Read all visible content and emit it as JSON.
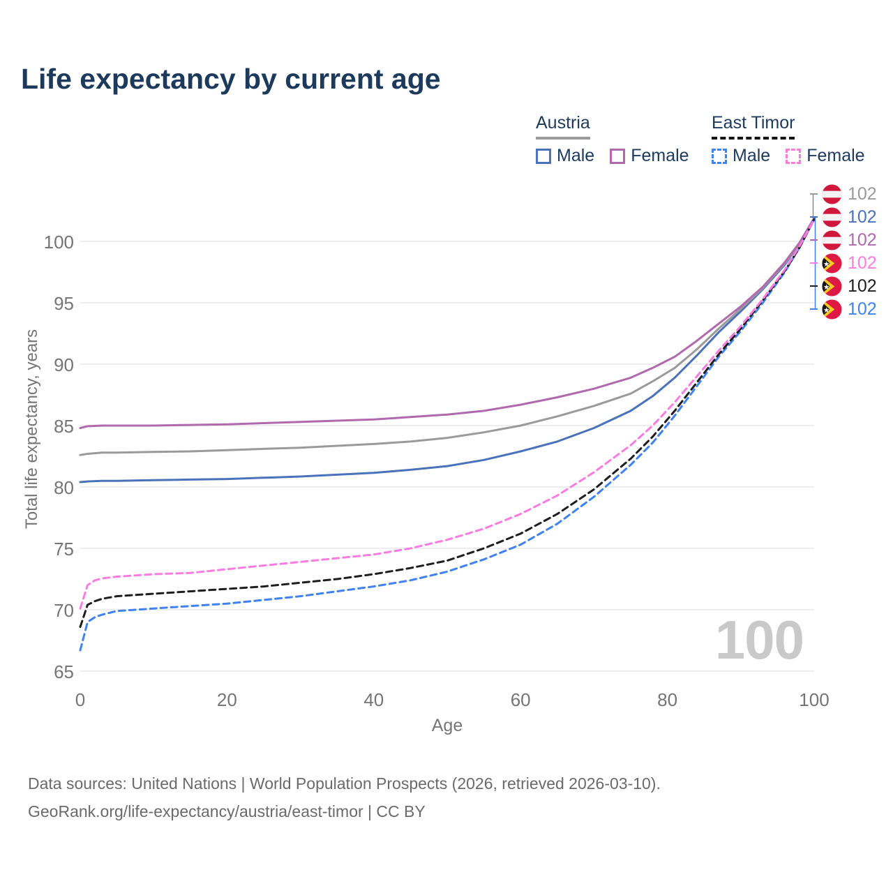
{
  "title": "Life expectancy by current age",
  "legend": {
    "groups": [
      {
        "label": "Austria",
        "line_style": "solid",
        "underline_color": "#9a9a9a",
        "items": [
          {
            "label": "Male",
            "color": "#4a72ba"
          },
          {
            "label": "Female",
            "color": "#b169ae"
          }
        ]
      },
      {
        "label": "East Timor",
        "line_style": "dashed",
        "underline_color": "#151515",
        "items": [
          {
            "label": "Male",
            "color": "#3f82f0"
          },
          {
            "label": "Female",
            "color": "#fb7ce0"
          }
        ]
      }
    ]
  },
  "chart_data": {
    "type": "line",
    "title": "Life expectancy by current age",
    "xlabel": "Age",
    "ylabel": "Total life expectancy, years",
    "xlim": [
      0,
      100
    ],
    "ylim": [
      63.5,
      103.5
    ],
    "xticks": [
      0,
      20,
      40,
      60,
      80,
      100
    ],
    "yticks": [
      65,
      70,
      75,
      80,
      85,
      90,
      95,
      100
    ],
    "grid": "horizontal-only",
    "legend_position": "top-right",
    "series": [
      {
        "id": "austria-male",
        "name": "Austria Male",
        "country": "Austria",
        "sex": "male",
        "color": "#4a72ba",
        "dashed": false,
        "end_label": "102",
        "points": [
          [
            0,
            80.4
          ],
          [
            1,
            80.45
          ],
          [
            3,
            80.5
          ],
          [
            5,
            80.5
          ],
          [
            10,
            80.55
          ],
          [
            15,
            80.6
          ],
          [
            20,
            80.65
          ],
          [
            25,
            80.75
          ],
          [
            30,
            80.85
          ],
          [
            35,
            81.0
          ],
          [
            40,
            81.15
          ],
          [
            45,
            81.4
          ],
          [
            50,
            81.7
          ],
          [
            55,
            82.2
          ],
          [
            60,
            82.9
          ],
          [
            65,
            83.7
          ],
          [
            70,
            84.8
          ],
          [
            75,
            86.2
          ],
          [
            78,
            87.4
          ],
          [
            81,
            88.9
          ],
          [
            84,
            90.7
          ],
          [
            87,
            92.6
          ],
          [
            90,
            94.3
          ],
          [
            93,
            96.1
          ],
          [
            96,
            98.1
          ],
          [
            98,
            99.8
          ],
          [
            100,
            101.9
          ]
        ]
      },
      {
        "id": "austria-all",
        "name": "Austria (both sexes)",
        "country": "Austria",
        "sex": "all",
        "color": "#9a9a9a",
        "dashed": false,
        "end_label": "102",
        "points": [
          [
            0,
            82.6
          ],
          [
            1,
            82.7
          ],
          [
            3,
            82.8
          ],
          [
            5,
            82.8
          ],
          [
            10,
            82.85
          ],
          [
            15,
            82.9
          ],
          [
            20,
            83.0
          ],
          [
            25,
            83.1
          ],
          [
            30,
            83.2
          ],
          [
            35,
            83.35
          ],
          [
            40,
            83.5
          ],
          [
            45,
            83.7
          ],
          [
            50,
            84.0
          ],
          [
            55,
            84.45
          ],
          [
            60,
            85.0
          ],
          [
            65,
            85.75
          ],
          [
            70,
            86.6
          ],
          [
            75,
            87.6
          ],
          [
            78,
            88.6
          ],
          [
            81,
            89.7
          ],
          [
            84,
            91.2
          ],
          [
            87,
            92.9
          ],
          [
            90,
            94.5
          ],
          [
            93,
            96.2
          ],
          [
            96,
            98.2
          ],
          [
            98,
            99.8
          ],
          [
            100,
            101.9
          ]
        ]
      },
      {
        "id": "austria-female",
        "name": "Austria Female",
        "country": "Austria",
        "sex": "female",
        "color": "#b169ae",
        "dashed": false,
        "end_label": "102",
        "points": [
          [
            0,
            84.8
          ],
          [
            1,
            84.95
          ],
          [
            3,
            85.0
          ],
          [
            5,
            85.0
          ],
          [
            10,
            85.0
          ],
          [
            15,
            85.05
          ],
          [
            20,
            85.1
          ],
          [
            25,
            85.2
          ],
          [
            30,
            85.3
          ],
          [
            35,
            85.4
          ],
          [
            40,
            85.5
          ],
          [
            45,
            85.7
          ],
          [
            50,
            85.9
          ],
          [
            55,
            86.2
          ],
          [
            60,
            86.7
          ],
          [
            65,
            87.3
          ],
          [
            70,
            88.0
          ],
          [
            75,
            88.9
          ],
          [
            78,
            89.7
          ],
          [
            81,
            90.6
          ],
          [
            84,
            91.9
          ],
          [
            87,
            93.3
          ],
          [
            90,
            94.7
          ],
          [
            93,
            96.3
          ],
          [
            96,
            98.3
          ],
          [
            98,
            99.9
          ],
          [
            100,
            101.9
          ]
        ]
      },
      {
        "id": "east-timor-male",
        "name": "East Timor Male",
        "country": "East Timor",
        "sex": "male",
        "color": "#3f82f0",
        "dashed": true,
        "end_label": "102",
        "points": [
          [
            0,
            66.7
          ],
          [
            1,
            69.0
          ],
          [
            2,
            69.4
          ],
          [
            3,
            69.6
          ],
          [
            5,
            69.9
          ],
          [
            10,
            70.1
          ],
          [
            15,
            70.3
          ],
          [
            20,
            70.5
          ],
          [
            25,
            70.8
          ],
          [
            30,
            71.1
          ],
          [
            35,
            71.5
          ],
          [
            40,
            71.9
          ],
          [
            45,
            72.4
          ],
          [
            50,
            73.1
          ],
          [
            55,
            74.1
          ],
          [
            60,
            75.3
          ],
          [
            65,
            77.0
          ],
          [
            70,
            79.2
          ],
          [
            75,
            81.8
          ],
          [
            78,
            83.6
          ],
          [
            81,
            85.8
          ],
          [
            84,
            88.2
          ],
          [
            87,
            90.6
          ],
          [
            90,
            92.7
          ],
          [
            93,
            95.0
          ],
          [
            96,
            97.5
          ],
          [
            98,
            99.5
          ],
          [
            100,
            101.8
          ]
        ]
      },
      {
        "id": "east-timor-all",
        "name": "East Timor (both sexes)",
        "country": "East Timor",
        "sex": "all",
        "color": "#1e1e1e",
        "dashed": true,
        "end_label": "102",
        "points": [
          [
            0,
            68.6
          ],
          [
            1,
            70.4
          ],
          [
            2,
            70.7
          ],
          [
            3,
            70.9
          ],
          [
            5,
            71.1
          ],
          [
            10,
            71.3
          ],
          [
            15,
            71.5
          ],
          [
            20,
            71.7
          ],
          [
            25,
            71.9
          ],
          [
            30,
            72.2
          ],
          [
            35,
            72.5
          ],
          [
            40,
            72.9
          ],
          [
            45,
            73.4
          ],
          [
            50,
            74.0
          ],
          [
            55,
            75.0
          ],
          [
            60,
            76.2
          ],
          [
            65,
            77.8
          ],
          [
            70,
            79.8
          ],
          [
            75,
            82.3
          ],
          [
            78,
            84.1
          ],
          [
            81,
            86.2
          ],
          [
            84,
            88.5
          ],
          [
            87,
            90.8
          ],
          [
            90,
            92.9
          ],
          [
            93,
            95.2
          ],
          [
            96,
            97.6
          ],
          [
            98,
            99.5
          ],
          [
            100,
            101.8
          ]
        ]
      },
      {
        "id": "east-timor-female",
        "name": "East Timor Female",
        "country": "East Timor",
        "sex": "female",
        "color": "#fb7ce0",
        "dashed": true,
        "end_label": "102",
        "points": [
          [
            0,
            70.1
          ],
          [
            1,
            72.0
          ],
          [
            2,
            72.4
          ],
          [
            3,
            72.55
          ],
          [
            5,
            72.7
          ],
          [
            10,
            72.9
          ],
          [
            15,
            73.0
          ],
          [
            20,
            73.3
          ],
          [
            25,
            73.6
          ],
          [
            30,
            73.9
          ],
          [
            35,
            74.2
          ],
          [
            40,
            74.5
          ],
          [
            45,
            75.0
          ],
          [
            50,
            75.7
          ],
          [
            55,
            76.6
          ],
          [
            60,
            77.8
          ],
          [
            65,
            79.3
          ],
          [
            70,
            81.2
          ],
          [
            75,
            83.4
          ],
          [
            78,
            85.0
          ],
          [
            81,
            86.9
          ],
          [
            84,
            89.0
          ],
          [
            87,
            91.1
          ],
          [
            90,
            93.1
          ],
          [
            93,
            95.3
          ],
          [
            96,
            97.7
          ],
          [
            98,
            99.6
          ],
          [
            100,
            101.8
          ]
        ]
      }
    ],
    "end_labels": [
      {
        "flag": "austria",
        "value": "102",
        "color": "#9a9a9a"
      },
      {
        "flag": "austria",
        "value": "102",
        "color": "#4a72ba"
      },
      {
        "flag": "austria",
        "value": "102",
        "color": "#b169ae"
      },
      {
        "flag": "east-timor",
        "value": "102",
        "color": "#fb7ce0"
      },
      {
        "flag": "east-timor",
        "value": "102",
        "color": "#1e1e1e"
      },
      {
        "flag": "east-timor",
        "value": "102",
        "color": "#3f82f0"
      }
    ]
  },
  "watermark": "100",
  "axes": {
    "x_label": "Age",
    "y_label": "Total life expectancy, years"
  },
  "footer": {
    "line1": "Data sources: United Nations | World Population Prospects (2026, retrieved 2026-03-10).",
    "line2": "GeoRank.org/life-expectancy/austria/east-timor | CC BY"
  }
}
